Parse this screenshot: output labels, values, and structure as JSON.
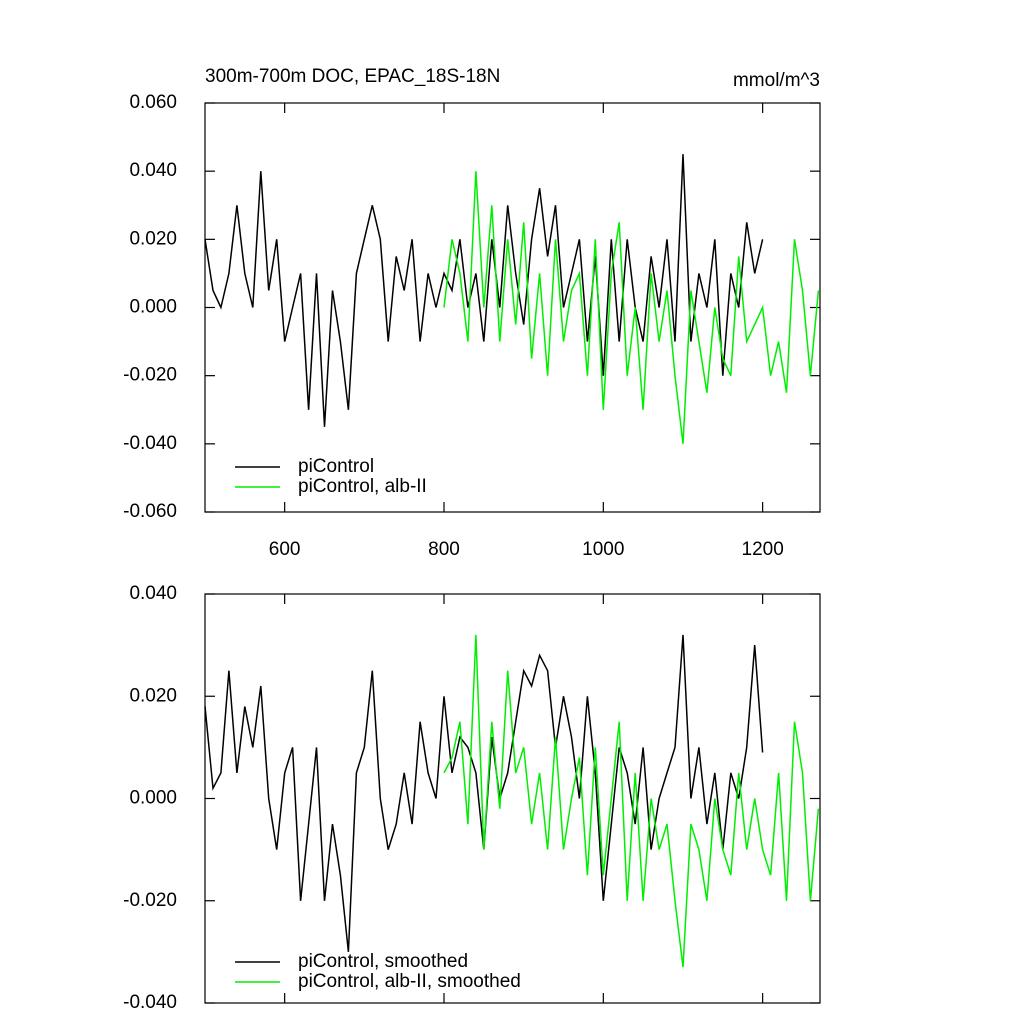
{
  "chart_data": [
    {
      "type": "line",
      "title": "300m-700m DOC, EPAC_18S-18N",
      "units": "mmol/m^3",
      "x": [
        500,
        510,
        520,
        530,
        540,
        550,
        560,
        570,
        580,
        590,
        600,
        610,
        620,
        630,
        640,
        650,
        660,
        670,
        680,
        690,
        700,
        710,
        720,
        730,
        740,
        750,
        760,
        770,
        780,
        790,
        800,
        810,
        820,
        830,
        840,
        850,
        860,
        870,
        880,
        890,
        900,
        910,
        920,
        930,
        940,
        950,
        960,
        970,
        980,
        990,
        1000,
        1010,
        1020,
        1030,
        1040,
        1050,
        1060,
        1070,
        1080,
        1090,
        1100,
        1110,
        1120,
        1130,
        1140,
        1150,
        1160,
        1170,
        1180,
        1190,
        1200,
        1210,
        1220,
        1230,
        1240,
        1250,
        1260,
        1270
      ],
      "series": [
        {
          "name": "piControl",
          "color": "#000000",
          "values": [
            0.02,
            0.005,
            0.0,
            0.01,
            0.03,
            0.01,
            0.0,
            0.04,
            0.005,
            0.02,
            -0.01,
            0.0,
            0.01,
            -0.03,
            0.01,
            -0.035,
            0.005,
            -0.01,
            -0.03,
            0.01,
            0.02,
            0.03,
            0.02,
            -0.01,
            0.015,
            0.005,
            0.02,
            -0.01,
            0.01,
            0.0,
            0.01,
            0.005,
            0.02,
            0.0,
            0.01,
            -0.01,
            0.02,
            0.0,
            0.03,
            0.01,
            -0.005,
            0.02,
            0.035,
            0.015,
            0.03,
            0.0,
            0.01,
            0.02,
            -0.01,
            0.015,
            -0.02,
            0.02,
            -0.01,
            0.02,
            0.0,
            -0.01,
            0.015,
            0.0,
            0.02,
            -0.01,
            0.045,
            -0.01,
            0.01,
            0.0,
            0.02,
            -0.02,
            0.01,
            0.0,
            0.025,
            0.01,
            0.02,
            null,
            null,
            null,
            null,
            null,
            null,
            null
          ]
        },
        {
          "name": "piControl, alb-II",
          "color": "#00ee00",
          "values": [
            null,
            null,
            null,
            null,
            null,
            null,
            null,
            null,
            null,
            null,
            null,
            null,
            null,
            null,
            null,
            null,
            null,
            null,
            null,
            null,
            null,
            null,
            null,
            null,
            null,
            null,
            null,
            null,
            null,
            null,
            0.0,
            0.02,
            0.01,
            -0.01,
            0.04,
            0.0,
            0.03,
            -0.01,
            0.02,
            -0.005,
            0.025,
            -0.015,
            0.01,
            -0.02,
            0.02,
            -0.01,
            0.005,
            0.01,
            -0.02,
            0.02,
            -0.03,
            0.01,
            0.025,
            -0.02,
            0.0,
            -0.03,
            0.01,
            -0.01,
            0.005,
            -0.02,
            -0.04,
            0.005,
            -0.01,
            -0.025,
            0.0,
            -0.015,
            -0.02,
            0.015,
            -0.01,
            -0.005,
            0.0,
            -0.02,
            -0.01,
            -0.025,
            0.02,
            0.005,
            -0.02,
            0.005
          ]
        }
      ],
      "xlim": [
        500,
        1272
      ],
      "xticks": [
        600,
        800,
        1000,
        1200
      ],
      "ylim": [
        -0.06,
        0.06
      ],
      "yticks": [
        {
          "value": -0.06,
          "label": "-0.060"
        },
        {
          "value": -0.04,
          "label": "-0.040"
        },
        {
          "value": -0.02,
          "label": "-0.020"
        },
        {
          "value": 0,
          "label": "0.000"
        },
        {
          "value": 0.02,
          "label": "0.020"
        },
        {
          "value": 0.04,
          "label": "0.040"
        },
        {
          "value": 0.06,
          "label": "0.060"
        }
      ]
    },
    {
      "type": "line",
      "x": [
        500,
        510,
        520,
        530,
        540,
        550,
        560,
        570,
        580,
        590,
        600,
        610,
        620,
        630,
        640,
        650,
        660,
        670,
        680,
        690,
        700,
        710,
        720,
        730,
        740,
        750,
        760,
        770,
        780,
        790,
        800,
        810,
        820,
        830,
        840,
        850,
        860,
        870,
        880,
        890,
        900,
        910,
        920,
        930,
        940,
        950,
        960,
        970,
        980,
        990,
        1000,
        1010,
        1020,
        1030,
        1040,
        1050,
        1060,
        1070,
        1080,
        1090,
        1100,
        1110,
        1120,
        1130,
        1140,
        1150,
        1160,
        1170,
        1180,
        1190,
        1200,
        1210,
        1220,
        1230,
        1240,
        1250,
        1260,
        1270
      ],
      "series": [
        {
          "name": "piControl, smoothed",
          "color": "#000000",
          "values": [
            0.018,
            0.002,
            0.005,
            0.025,
            0.005,
            0.018,
            0.01,
            0.022,
            0.0,
            -0.01,
            0.005,
            0.01,
            -0.02,
            -0.005,
            0.01,
            -0.02,
            -0.005,
            -0.015,
            -0.03,
            0.005,
            0.01,
            0.025,
            0.0,
            -0.01,
            -0.005,
            0.005,
            -0.005,
            0.015,
            0.005,
            0.0,
            0.02,
            0.005,
            0.012,
            0.01,
            0.005,
            -0.01,
            0.012,
            0.0,
            0.005,
            0.015,
            0.025,
            0.022,
            0.028,
            0.025,
            0.01,
            0.02,
            0.012,
            0.0,
            0.02,
            0.005,
            -0.02,
            -0.005,
            0.01,
            0.005,
            -0.005,
            0.01,
            -0.01,
            0.0,
            0.005,
            0.01,
            0.032,
            0.0,
            0.01,
            -0.005,
            0.005,
            -0.01,
            0.005,
            0.0,
            0.01,
            0.03,
            0.009,
            null,
            null,
            null,
            null,
            null,
            null,
            null
          ]
        },
        {
          "name": "piControl, alb-II, smoothed",
          "color": "#00ee00",
          "values": [
            null,
            null,
            null,
            null,
            null,
            null,
            null,
            null,
            null,
            null,
            null,
            null,
            null,
            null,
            null,
            null,
            null,
            null,
            null,
            null,
            null,
            null,
            null,
            null,
            null,
            null,
            null,
            null,
            null,
            null,
            0.005,
            0.008,
            0.015,
            -0.005,
            0.032,
            -0.01,
            0.015,
            -0.002,
            0.025,
            0.005,
            0.01,
            -0.005,
            0.005,
            -0.01,
            0.012,
            -0.01,
            0.0,
            0.008,
            -0.015,
            0.01,
            -0.015,
            0.0,
            0.015,
            -0.02,
            0.005,
            -0.02,
            0.0,
            -0.01,
            -0.005,
            -0.02,
            -0.033,
            -0.005,
            -0.01,
            -0.02,
            0.0,
            -0.01,
            -0.015,
            0.005,
            -0.01,
            0.0,
            -0.01,
            -0.015,
            0.005,
            -0.02,
            0.015,
            0.005,
            -0.02,
            -0.002
          ]
        }
      ],
      "xlim": [
        500,
        1272
      ],
      "xticks": [
        600,
        800,
        1000,
        1200
      ],
      "ylim": [
        -0.04,
        0.04
      ],
      "yticks": [
        {
          "value": -0.04,
          "label": "-0.040"
        },
        {
          "value": -0.02,
          "label": "-0.020"
        },
        {
          "value": 0,
          "label": "0.000"
        },
        {
          "value": 0.02,
          "label": "0.020"
        },
        {
          "value": 0.04,
          "label": "0.040"
        }
      ]
    }
  ]
}
